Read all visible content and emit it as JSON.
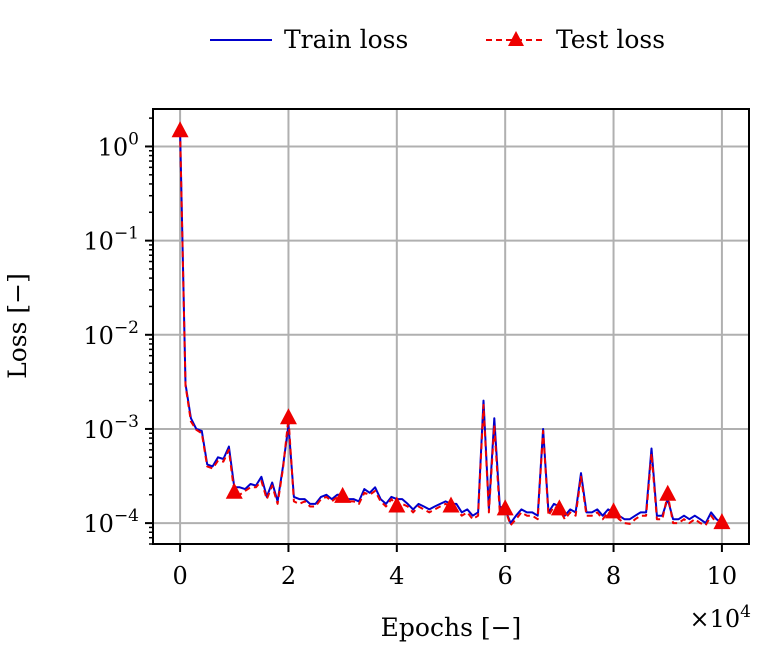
{
  "chart_data": {
    "type": "line",
    "xlabel": "Epochs [−]",
    "ylabel": "Loss [−]",
    "x_multiplier": "×10",
    "x_multiplier_exp": "4",
    "xlim": [
      -0.5,
      10.5
    ],
    "ylim": [
      6e-05,
      2.5
    ],
    "yscale": "log",
    "grid": true,
    "legend_placement": "top-center, outside",
    "x_ticks": [
      {
        "value": 0,
        "label": "0"
      },
      {
        "value": 2,
        "label": "2"
      },
      {
        "value": 4,
        "label": "4"
      },
      {
        "value": 6,
        "label": "6"
      },
      {
        "value": 8,
        "label": "8"
      },
      {
        "value": 10,
        "label": "10"
      }
    ],
    "y_ticks": [
      {
        "value": 1,
        "base": "10",
        "exp": "0"
      },
      {
        "value": 0.1,
        "base": "10",
        "exp": "−1"
      },
      {
        "value": 0.01,
        "base": "10",
        "exp": "−2"
      },
      {
        "value": 0.001,
        "base": "10",
        "exp": "−3"
      },
      {
        "value": 0.0001,
        "base": "10",
        "exp": "−4"
      }
    ],
    "series": [
      {
        "name": "Train loss",
        "color": "#0000cc",
        "style": "solid",
        "marker": "none",
        "x": [
          0,
          0.1,
          0.2,
          0.3,
          0.4,
          0.5,
          0.6,
          0.7,
          0.8,
          0.9,
          1.0,
          1.1,
          1.2,
          1.3,
          1.4,
          1.5,
          1.6,
          1.7,
          1.8,
          1.9,
          2.0,
          2.1,
          2.2,
          2.3,
          2.4,
          2.5,
          2.6,
          2.7,
          2.8,
          2.9,
          3.0,
          3.1,
          3.2,
          3.3,
          3.4,
          3.5,
          3.6,
          3.7,
          3.8,
          3.9,
          4.0,
          4.1,
          4.2,
          4.3,
          4.4,
          4.5,
          4.6,
          4.7,
          4.8,
          4.9,
          5.0,
          5.1,
          5.2,
          5.3,
          5.4,
          5.5,
          5.6,
          5.7,
          5.8,
          5.9,
          6.0,
          6.1,
          6.2,
          6.3,
          6.4,
          6.5,
          6.6,
          6.7,
          6.8,
          6.9,
          7.0,
          7.1,
          7.2,
          7.3,
          7.4,
          7.5,
          7.6,
          7.7,
          7.8,
          7.9,
          8.0,
          8.1,
          8.2,
          8.3,
          8.4,
          8.5,
          8.6,
          8.7,
          8.8,
          8.9,
          9.0,
          9.1,
          9.2,
          9.3,
          9.4,
          9.5,
          9.6,
          9.7,
          9.8,
          9.9,
          10.0
        ],
        "y": [
          1.45,
          0.003,
          0.0013,
          0.001,
          0.00095,
          0.00042,
          0.0004,
          0.0005,
          0.00048,
          0.00065,
          0.00024,
          0.00024,
          0.00023,
          0.00026,
          0.00025,
          0.00031,
          0.00019,
          0.00027,
          0.00017,
          0.0004,
          0.0011,
          0.00019,
          0.00018,
          0.00018,
          0.00016,
          0.00016,
          0.00019,
          0.0002,
          0.00018,
          0.0002,
          0.0002,
          0.00018,
          0.00018,
          0.00017,
          0.00023,
          0.00021,
          0.00024,
          0.00018,
          0.00016,
          0.00019,
          0.00018,
          0.00018,
          0.00016,
          0.00014,
          0.00016,
          0.00015,
          0.00014,
          0.00015,
          0.00016,
          0.00017,
          0.00016,
          0.00016,
          0.00013,
          0.00014,
          0.00012,
          0.00013,
          0.002,
          0.00014,
          0.0013,
          0.00015,
          0.00014,
          0.0001,
          0.00012,
          0.00014,
          0.00013,
          0.00013,
          0.00012,
          0.001,
          0.00013,
          0.00016,
          0.00015,
          0.00012,
          0.00014,
          0.00013,
          0.00034,
          0.00013,
          0.00013,
          0.00014,
          0.00012,
          0.00014,
          0.00013,
          0.00012,
          0.00011,
          0.00011,
          0.00012,
          0.00013,
          0.00013,
          0.00062,
          0.00012,
          0.00012,
          0.00018,
          0.00011,
          0.00011,
          0.00012,
          0.00011,
          0.00012,
          0.00011,
          0.0001,
          0.00013,
          0.00011,
          0.0001
        ]
      },
      {
        "name": "Test loss",
        "color": "#ee0000",
        "style": "dashed",
        "marker": "triangle",
        "marker_x": [
          0,
          1,
          2,
          3,
          4,
          5,
          6,
          7,
          8,
          9,
          10
        ],
        "x": [
          0,
          0.1,
          0.2,
          0.3,
          0.4,
          0.5,
          0.6,
          0.7,
          0.8,
          0.9,
          1.0,
          1.1,
          1.2,
          1.3,
          1.4,
          1.5,
          1.6,
          1.7,
          1.8,
          1.9,
          2.0,
          2.1,
          2.2,
          2.3,
          2.4,
          2.5,
          2.6,
          2.7,
          2.8,
          2.9,
          3.0,
          3.1,
          3.2,
          3.3,
          3.4,
          3.5,
          3.6,
          3.7,
          3.8,
          3.9,
          4.0,
          4.1,
          4.2,
          4.3,
          4.4,
          4.5,
          4.6,
          4.7,
          4.8,
          4.9,
          5.0,
          5.1,
          5.2,
          5.3,
          5.4,
          5.5,
          5.6,
          5.7,
          5.8,
          5.9,
          6.0,
          6.1,
          6.2,
          6.3,
          6.4,
          6.5,
          6.6,
          6.7,
          6.8,
          6.9,
          7.0,
          7.1,
          7.2,
          7.3,
          7.4,
          7.5,
          7.6,
          7.7,
          7.8,
          7.9,
          8.0,
          8.1,
          8.2,
          8.3,
          8.4,
          8.5,
          8.6,
          8.7,
          8.8,
          8.9,
          9.0,
          9.1,
          9.2,
          9.3,
          9.4,
          9.5,
          9.6,
          9.7,
          9.8,
          9.9,
          10.0
        ],
        "y": [
          1.45,
          0.0029,
          0.0012,
          0.00098,
          0.0009,
          0.0004,
          0.00038,
          0.00046,
          0.00045,
          0.0006,
          0.00021,
          0.0002,
          0.00022,
          0.00024,
          0.00024,
          0.00028,
          0.00018,
          0.00025,
          0.00016,
          0.00038,
          0.0013,
          0.00017,
          0.00016,
          0.00017,
          0.00015,
          0.00015,
          0.00018,
          0.00019,
          0.00017,
          0.00019,
          0.00019,
          0.00017,
          0.00017,
          0.00016,
          0.00021,
          0.0002,
          0.00022,
          0.00017,
          0.00015,
          0.00018,
          0.00015,
          0.00016,
          0.00015,
          0.00013,
          0.00015,
          0.00014,
          0.00013,
          0.00014,
          0.00015,
          0.00016,
          0.00015,
          0.00014,
          0.00012,
          0.00013,
          0.00011,
          0.00012,
          0.0018,
          0.00013,
          0.0011,
          0.00013,
          0.00014,
          9.5e-05,
          0.00011,
          0.00013,
          0.00012,
          0.00012,
          0.00011,
          0.00095,
          0.00012,
          0.00015,
          0.00014,
          0.00011,
          0.00013,
          0.00012,
          0.00031,
          0.00012,
          0.00012,
          0.00013,
          0.00011,
          0.00013,
          0.00013,
          0.00011,
          0.0001,
          9.8e-05,
          0.00011,
          0.00012,
          0.00012,
          0.00055,
          0.00011,
          0.00011,
          0.0002,
          0.0001,
          0.0001,
          0.00011,
          0.0001,
          0.00011,
          0.0001,
          9.5e-05,
          0.00012,
          0.0001,
          0.0001
        ]
      }
    ]
  }
}
